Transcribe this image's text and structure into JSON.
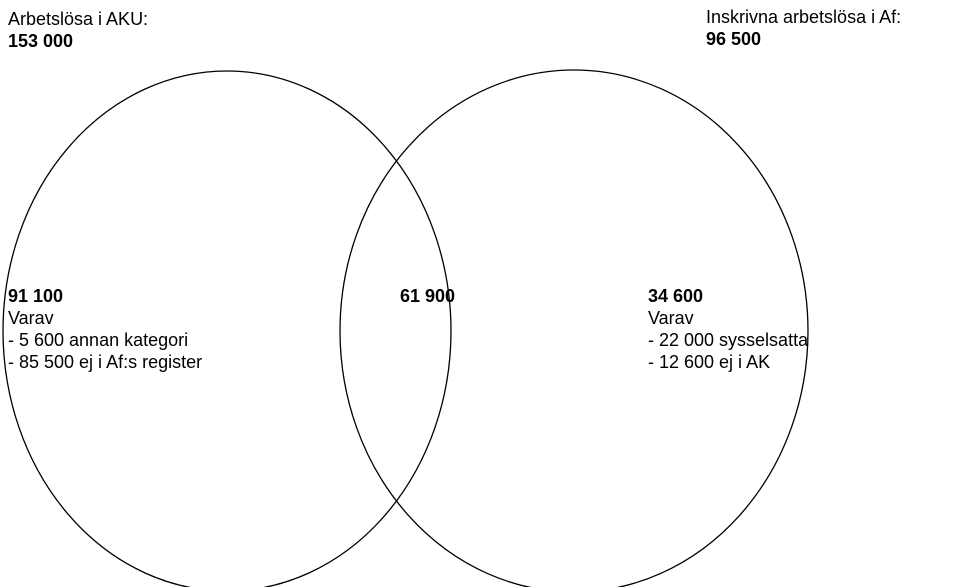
{
  "left_set": {
    "title": "Arbetslösa i AKU:",
    "total": "153 000"
  },
  "right_set": {
    "title": "Inskrivna arbetslösa i Af:",
    "total": "96 500"
  },
  "regions": {
    "left_only": {
      "value": "91 100",
      "heading": "Varav",
      "items": [
        "- 5 600 annan kategori",
        "- 85 500 ej i Af:s register"
      ]
    },
    "overlap": {
      "value": "61 900"
    },
    "right_only": {
      "value": "34 600",
      "heading": "Varav",
      "items": [
        "- 22 000 sysselsatta",
        "- 12 600 ej i AK"
      ]
    }
  },
  "colors": {
    "stroke": "#000000",
    "background": "#ffffff"
  }
}
